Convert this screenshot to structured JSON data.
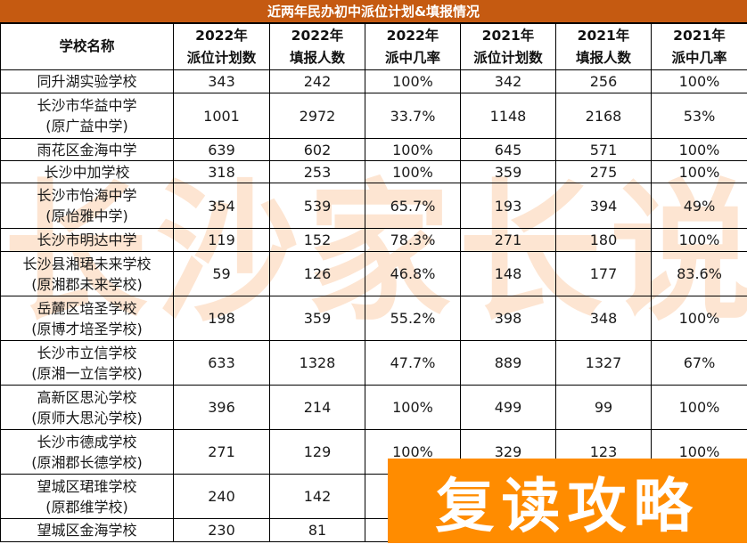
{
  "title": "近两年民办初中派位计划&填报情况",
  "watermark": [
    "长",
    "沙",
    "家",
    "长",
    "说"
  ],
  "promo_banner": "复读攻略",
  "colors": {
    "title_bar": "#c55a11",
    "watermark": "#fde5d2",
    "promo_banner": "#ff8c00"
  },
  "columns": [
    {
      "line1": "学校名称",
      "line2": ""
    },
    {
      "line1": "2022年",
      "line2": "派位计划数"
    },
    {
      "line1": "2022年",
      "line2": "填报人数"
    },
    {
      "line1": "2022年",
      "line2": "派中几率"
    },
    {
      "line1": "2021年",
      "line2": "派位计划数"
    },
    {
      "line1": "2021年",
      "line2": "填报人数"
    },
    {
      "line1": "2021年",
      "line2": "派中几率"
    }
  ],
  "rows": [
    {
      "name": "同升湖实验学校",
      "alias": "",
      "plan2022": "343",
      "apply2022": "242",
      "rate2022": "100%",
      "plan2021": "342",
      "apply2021": "256",
      "rate2021": "100%"
    },
    {
      "name": "长沙市华益中学",
      "alias": "(原广益中学)",
      "plan2022": "1001",
      "apply2022": "2972",
      "rate2022": "33.7%",
      "plan2021": "1148",
      "apply2021": "2168",
      "rate2021": "53%"
    },
    {
      "name": "雨花区金海中学",
      "alias": "",
      "plan2022": "639",
      "apply2022": "602",
      "rate2022": "100%",
      "plan2021": "645",
      "apply2021": "571",
      "rate2021": "100%"
    },
    {
      "name": "长沙中加学校",
      "alias": "",
      "plan2022": "318",
      "apply2022": "253",
      "rate2022": "100%",
      "plan2021": "359",
      "apply2021": "275",
      "rate2021": "100%"
    },
    {
      "name": "长沙市怡海中学",
      "alias": "(原怡雅中学)",
      "plan2022": "354",
      "apply2022": "539",
      "rate2022": "65.7%",
      "plan2021": "193",
      "apply2021": "394",
      "rate2021": "49%"
    },
    {
      "name": "长沙市明达中学",
      "alias": "",
      "plan2022": "119",
      "apply2022": "152",
      "rate2022": "78.3%",
      "plan2021": "271",
      "apply2021": "180",
      "rate2021": "100%"
    },
    {
      "name": "长沙县湘珺未来学校",
      "alias": "(原湘郡未来学校)",
      "plan2022": "59",
      "apply2022": "126",
      "rate2022": "46.8%",
      "plan2021": "148",
      "apply2021": "177",
      "rate2021": "83.6%"
    },
    {
      "name": "岳麓区培圣学校",
      "alias": "(原博才培圣学校)",
      "plan2022": "198",
      "apply2022": "359",
      "rate2022": "55.2%",
      "plan2021": "398",
      "apply2021": "348",
      "rate2021": "100%"
    },
    {
      "name": "长沙市立信学校",
      "alias": "(原湘一立信学校)",
      "plan2022": "633",
      "apply2022": "1328",
      "rate2022": "47.7%",
      "plan2021": "889",
      "apply2021": "1327",
      "rate2021": "67%"
    },
    {
      "name": "高新区思沁学校",
      "alias": "(原师大思沁学校)",
      "plan2022": "396",
      "apply2022": "214",
      "rate2022": "100%",
      "plan2021": "499",
      "apply2021": "99",
      "rate2021": "100%"
    },
    {
      "name": "长沙市德成学校",
      "alias": "(原湘郡长德学校)",
      "plan2022": "271",
      "apply2022": "129",
      "rate2022": "100%",
      "plan2021": "329",
      "apply2021": "123",
      "rate2021": "100%"
    },
    {
      "name": "望城区珺琟学校",
      "alias": "(原郡维学校)",
      "plan2022": "240",
      "apply2022": "142",
      "rate2022": "",
      "plan2021": "",
      "apply2021": "",
      "rate2021": ""
    },
    {
      "name": "望城区金海学校",
      "alias": "",
      "plan2022": "230",
      "apply2022": "81",
      "rate2022": "",
      "plan2021": "",
      "apply2021": "",
      "rate2021": ""
    }
  ]
}
